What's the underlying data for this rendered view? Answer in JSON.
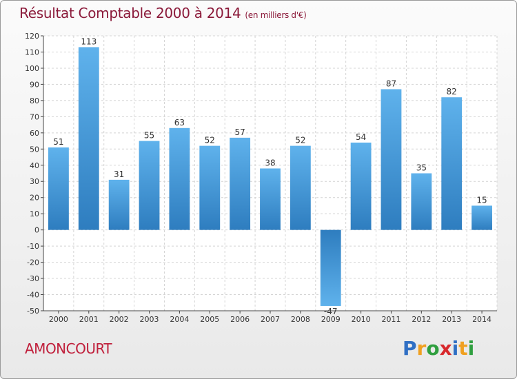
{
  "title": "Résultat Comptable 2000 à 2014",
  "subtitle": "(en milliers d'€)",
  "commune": "AMONCOURT",
  "logo": {
    "text": "Proxiti",
    "letters": [
      "P",
      "r",
      "o",
      "x",
      "i",
      "t",
      "i"
    ],
    "colors": [
      "#2f6fc4",
      "#f0a020",
      "#2f9f3f",
      "#d8282c",
      "#2f6fc4",
      "#f0a020",
      "#2f9f3f"
    ]
  },
  "colors": {
    "bar_light": "#5fb2ec",
    "bar_dark": "#2e7dbf",
    "grid": "#d4d4d4",
    "axis": "#444444",
    "title": "#8b1a3a"
  },
  "chart_data": {
    "type": "bar",
    "title": "Résultat Comptable 2000 à 2014",
    "xlabel": "",
    "ylabel": "",
    "ylim": [
      -50,
      120
    ],
    "yticks": [
      120,
      110,
      100,
      90,
      80,
      70,
      60,
      50,
      40,
      30,
      20,
      10,
      0,
      -10,
      -20,
      -30,
      -40,
      -50
    ],
    "grid": true,
    "categories": [
      "2000",
      "2001",
      "2002",
      "2003",
      "2004",
      "2005",
      "2006",
      "2007",
      "2008",
      "2009",
      "2010",
      "2011",
      "2012",
      "2013",
      "2014"
    ],
    "values": [
      51,
      113,
      31,
      55,
      63,
      52,
      57,
      38,
      52,
      -47,
      54,
      87,
      35,
      82,
      15
    ],
    "data_labels": [
      "51",
      "113",
      "31",
      "55",
      "63",
      "52",
      "57",
      "38",
      "52",
      "-47",
      "54",
      "87",
      "35",
      "82",
      "15"
    ]
  }
}
